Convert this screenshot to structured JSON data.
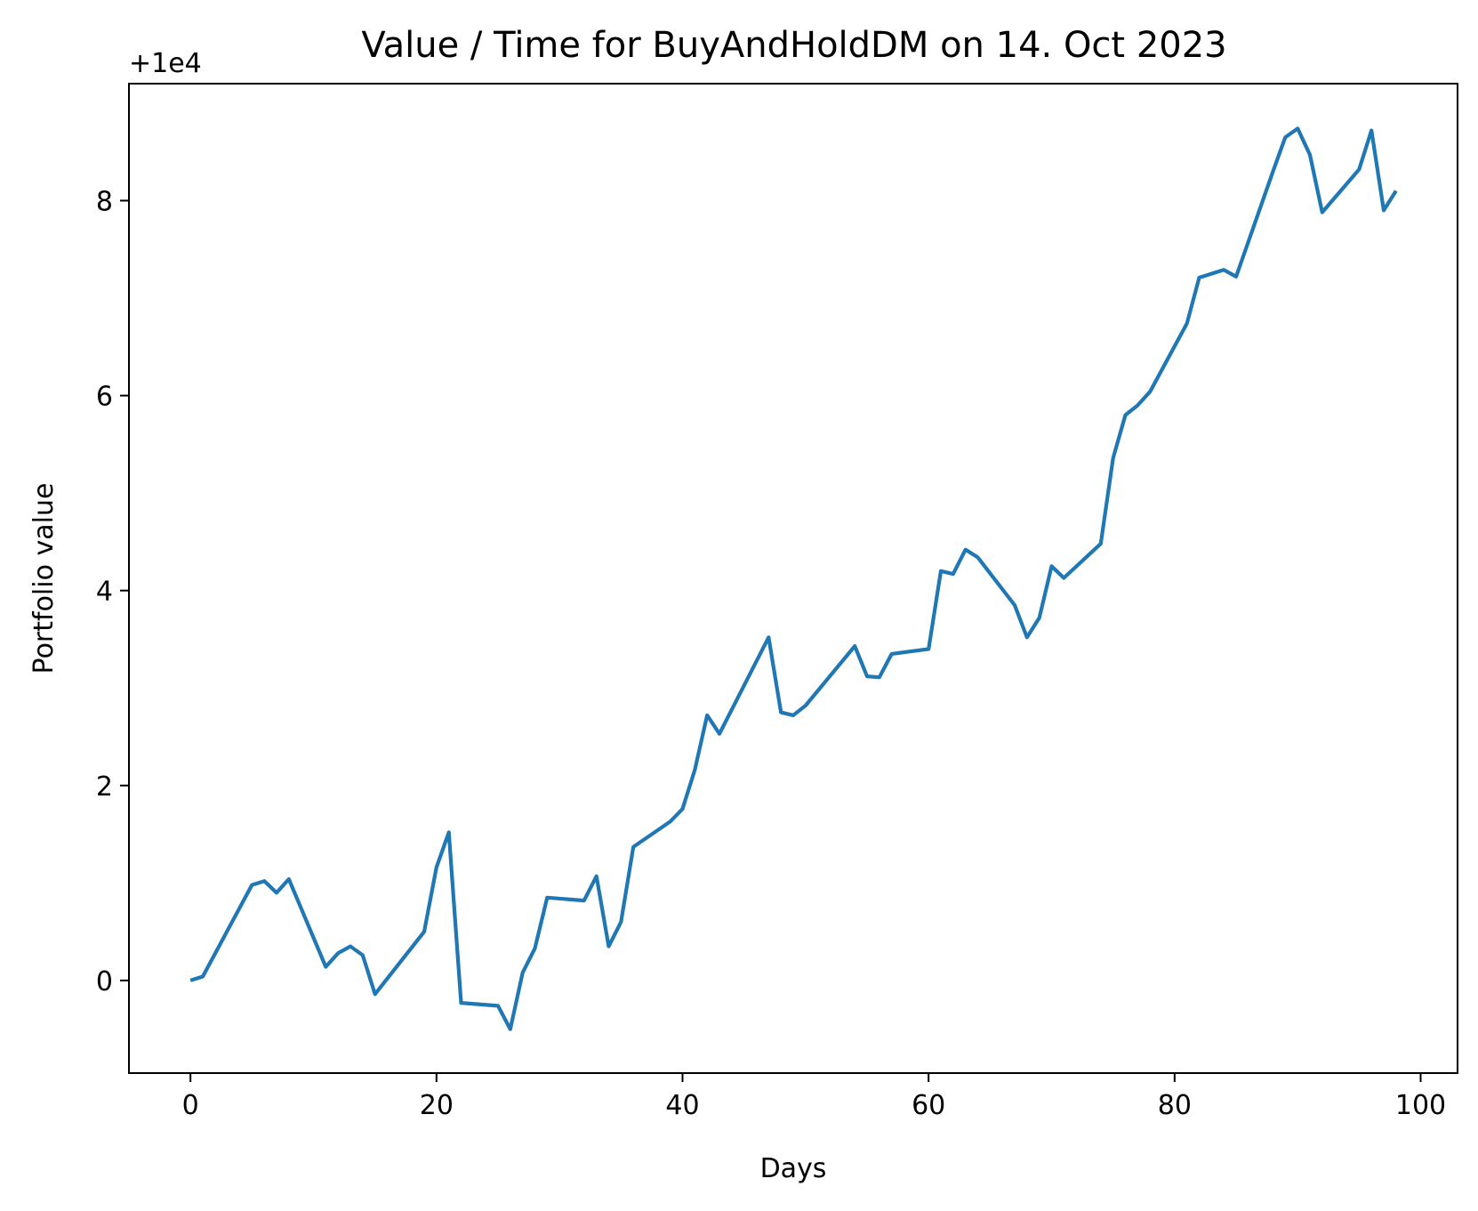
{
  "chart_data": {
    "type": "line",
    "title": "Value / Time for BuyAndHoldDM on 14. Oct 2023",
    "xlabel": "Days",
    "ylabel": "Portfolio value",
    "y_offset_label": "+1e4",
    "y_offset": 10000,
    "xlim": [
      -5,
      103
    ],
    "ylim": [
      -0.95,
      9.2
    ],
    "x_ticks": [
      0,
      20,
      40,
      60,
      80,
      100
    ],
    "y_ticks": [
      0,
      2,
      4,
      6,
      8
    ],
    "grid": false,
    "line_color": "#1f77b4",
    "series": [
      {
        "x": [
          0,
          1,
          5,
          6,
          7,
          8,
          11,
          12,
          13,
          14,
          15,
          19,
          20,
          21,
          22,
          25,
          26,
          27,
          28,
          29,
          32,
          33,
          34,
          35,
          36,
          39,
          40,
          41,
          42,
          43,
          47,
          48,
          49,
          50,
          54,
          55,
          56,
          57,
          60,
          61,
          62,
          63,
          64,
          67,
          68,
          69,
          70,
          71,
          74,
          75,
          76,
          77,
          78,
          81,
          82,
          84,
          85,
          88,
          89,
          90,
          91,
          92,
          95,
          96,
          97,
          98
        ],
        "y": [
          0.0,
          0.04,
          0.98,
          1.02,
          0.9,
          1.04,
          0.14,
          0.28,
          0.35,
          0.26,
          -0.14,
          0.5,
          1.16,
          1.52,
          -0.23,
          -0.26,
          -0.5,
          0.08,
          0.33,
          0.85,
          0.82,
          1.07,
          0.35,
          0.6,
          1.37,
          1.63,
          1.76,
          2.16,
          2.72,
          2.53,
          3.52,
          2.75,
          2.72,
          2.82,
          3.43,
          3.12,
          3.11,
          3.35,
          3.4,
          4.2,
          4.17,
          4.42,
          4.34,
          3.85,
          3.52,
          3.72,
          4.25,
          4.13,
          4.48,
          5.36,
          5.8,
          5.9,
          6.04,
          6.74,
          7.21,
          7.29,
          7.22,
          8.3,
          8.65,
          8.74,
          8.47,
          7.88,
          8.32,
          8.72,
          7.9,
          8.1
        ]
      }
    ]
  }
}
